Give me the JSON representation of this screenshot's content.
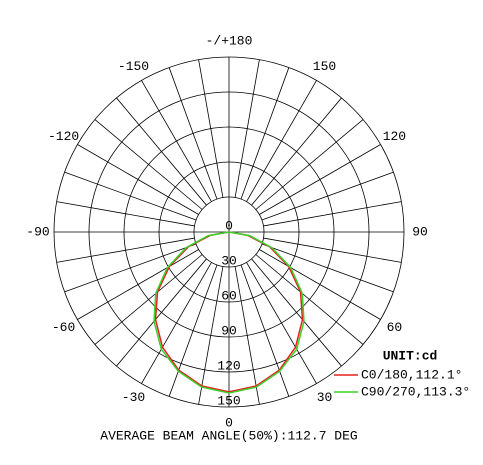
{
  "chart_data": {
    "type": "polar",
    "theta_zero": "bottom",
    "rlim": [
      0,
      150
    ],
    "rticks": [
      0,
      30,
      60,
      90,
      120,
      150
    ],
    "thetaticks": [
      {
        "value": 180,
        "label": "-/+180"
      },
      150,
      120,
      90,
      60,
      30,
      0,
      -30,
      -60,
      -90,
      -120,
      -150
    ],
    "thetagrid": [
      -170,
      -160,
      -150,
      -140,
      -130,
      -120,
      -110,
      -100,
      -90,
      -80,
      -70,
      -60,
      -50,
      -40,
      -30,
      -20,
      -10,
      0,
      10,
      20,
      30,
      40,
      50,
      60,
      70,
      80,
      90,
      100,
      110,
      120,
      130,
      140,
      150,
      160,
      170,
      180
    ],
    "x": [
      -90,
      -80,
      -70,
      -60,
      -50,
      -40,
      -30,
      -20,
      -10,
      0,
      10,
      20,
      30,
      40,
      50,
      60,
      70,
      80,
      90
    ],
    "series": [
      {
        "name": "C0/180,112.1°",
        "color": "#e8201c",
        "values": [
          0,
          16,
          37,
          59,
          80,
          98,
          114,
          126,
          134,
          137,
          134,
          126,
          114,
          98,
          80,
          59,
          37,
          16,
          0
        ]
      },
      {
        "name": "C90/270,113.3°",
        "color": "#3ad12a",
        "values": [
          0,
          18,
          39,
          61,
          82,
          100,
          116,
          127,
          135,
          138,
          135,
          127,
          116,
          100,
          82,
          61,
          39,
          18,
          0
        ]
      }
    ],
    "legend_title": "UNIT:cd",
    "caption": "AVERAGE BEAM ANGLE(50%):112.7 DEG"
  }
}
